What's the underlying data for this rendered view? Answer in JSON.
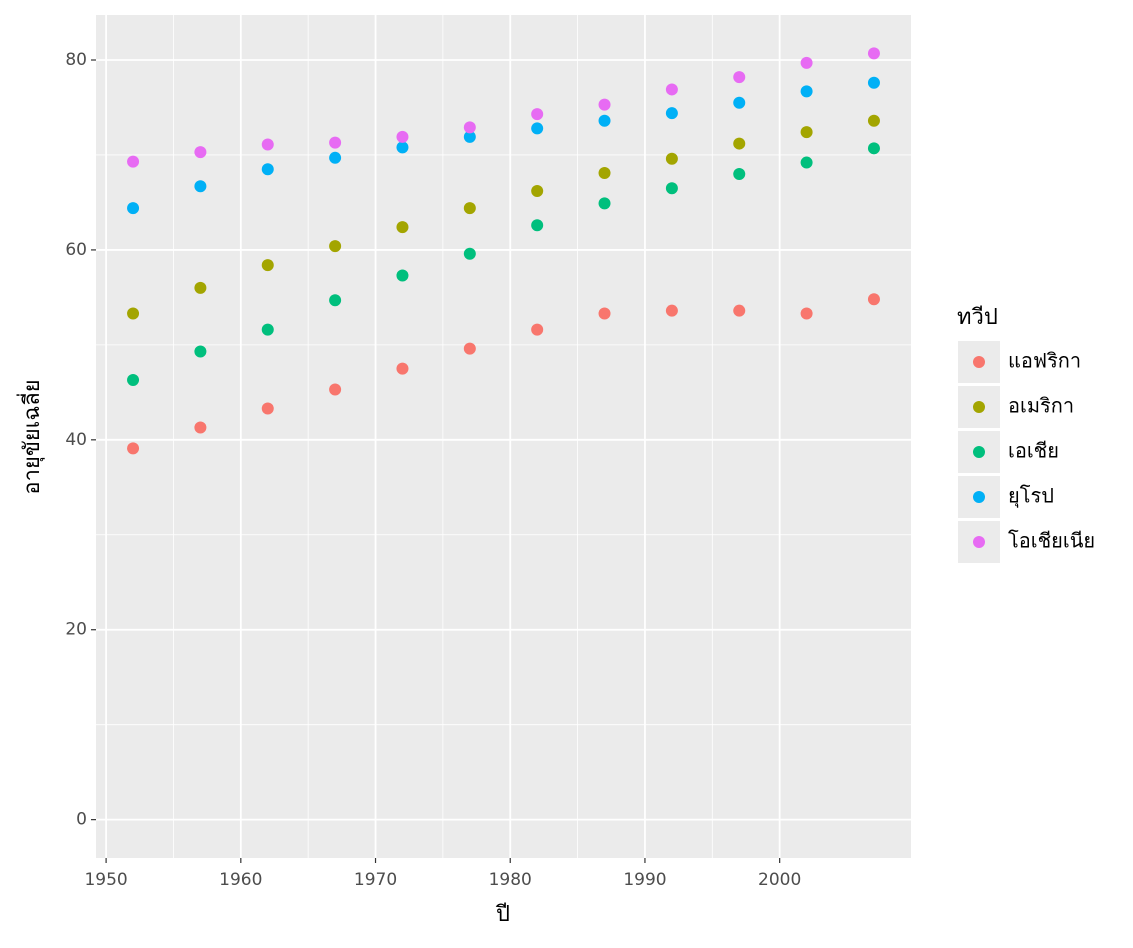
{
  "chart_data": {
    "type": "scatter",
    "x_label": "ปี",
    "y_label": "อายุขัยเฉลี่ย",
    "legend_title": "ทวีป",
    "x": [
      1952,
      1957,
      1962,
      1967,
      1972,
      1977,
      1982,
      1987,
      1992,
      1997,
      2002,
      2007
    ],
    "series": [
      {
        "name": "แอฟริกา",
        "color": "#F8766D",
        "values": [
          39.1,
          41.3,
          43.3,
          45.3,
          47.5,
          49.6,
          51.6,
          53.3,
          53.6,
          53.6,
          53.3,
          54.8
        ]
      },
      {
        "name": "อเมริกา",
        "color": "#A3A500",
        "values": [
          53.3,
          56.0,
          58.4,
          60.4,
          62.4,
          64.4,
          66.2,
          68.1,
          69.6,
          71.2,
          72.4,
          73.6
        ]
      },
      {
        "name": "เอเชีย",
        "color": "#00BF7D",
        "values": [
          46.3,
          49.3,
          51.6,
          54.7,
          57.3,
          59.6,
          62.6,
          64.9,
          66.5,
          68.0,
          69.2,
          70.7
        ]
      },
      {
        "name": "ยุโรป",
        "color": "#00B0F6",
        "values": [
          64.4,
          66.7,
          68.5,
          69.7,
          70.8,
          71.9,
          72.8,
          73.6,
          74.4,
          75.5,
          76.7,
          77.6
        ]
      },
      {
        "name": "โอเชียเนีย",
        "color": "#E76BF3",
        "values": [
          69.3,
          70.3,
          71.1,
          71.3,
          71.9,
          72.9,
          74.3,
          75.3,
          76.9,
          78.2,
          79.7,
          80.7
        ]
      }
    ],
    "xlim": [
      1949.25,
      2009.75
    ],
    "xticks": [
      1950,
      1960,
      1970,
      1980,
      1990,
      2000
    ],
    "ylim": [
      -4.04,
      84.74
    ],
    "yticks": [
      0,
      20,
      40,
      60,
      80
    ],
    "grid": true,
    "legend": "right"
  }
}
